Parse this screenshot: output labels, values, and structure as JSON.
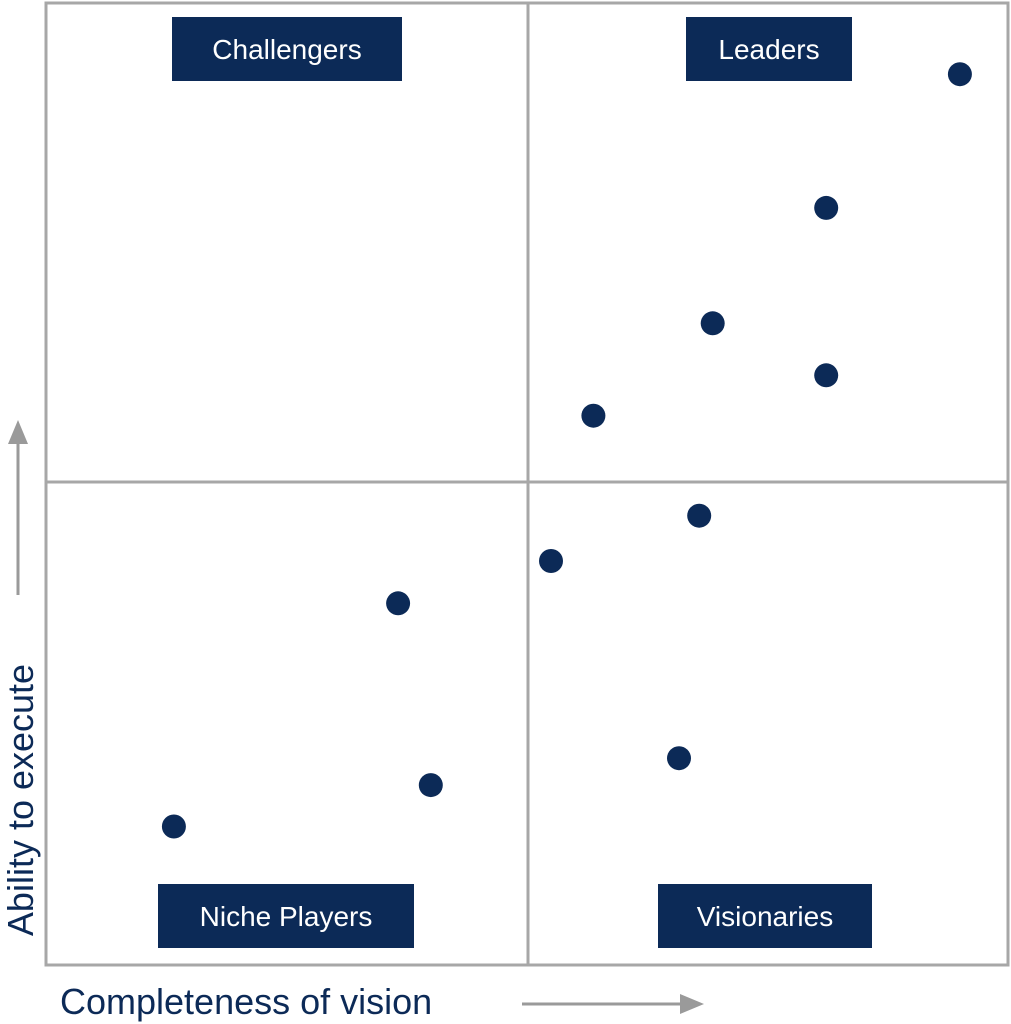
{
  "chart_data": {
    "type": "scatter",
    "title": "",
    "xlabel": "Completeness of vision",
    "ylabel": "Ability to execute",
    "xlim": [
      0,
      100
    ],
    "ylim": [
      0,
      100
    ],
    "grid": false,
    "quadrants": {
      "top_left": "Challengers",
      "top_right": "Leaders",
      "bottom_left": "Niche Players",
      "bottom_right": "Visionaries"
    },
    "points": [
      {
        "x": 95.0,
        "y": 92.6
      },
      {
        "x": 81.1,
        "y": 78.7
      },
      {
        "x": 69.3,
        "y": 66.7
      },
      {
        "x": 81.1,
        "y": 61.3
      },
      {
        "x": 56.9,
        "y": 57.1
      },
      {
        "x": 67.9,
        "y": 46.7
      },
      {
        "x": 52.5,
        "y": 42.0
      },
      {
        "x": 36.6,
        "y": 37.6
      },
      {
        "x": 65.8,
        "y": 21.5
      },
      {
        "x": 40.0,
        "y": 18.7
      },
      {
        "x": 13.3,
        "y": 14.4
      }
    ],
    "colors": {
      "primary": "#0c2a57",
      "frame": "#a7a7a7",
      "arrow": "#9a9a9a"
    }
  }
}
